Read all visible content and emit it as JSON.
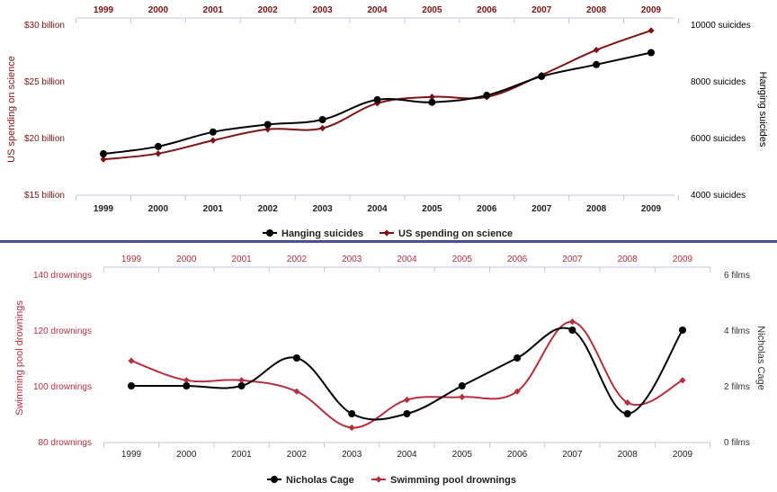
{
  "chart_data": [
    {
      "type": "line",
      "categories": [
        "1999",
        "2000",
        "2001",
        "2002",
        "2003",
        "2004",
        "2005",
        "2006",
        "2007",
        "2008",
        "2009"
      ],
      "series": [
        {
          "name": "Hanging suicides",
          "axis": "right",
          "color": "#000000",
          "marker": "circle",
          "values": [
            5427,
            5688,
            6198,
            6462,
            6635,
            7336,
            7248,
            7491,
            8161,
            8578,
            9000
          ]
        },
        {
          "name": "US spending on science",
          "axis": "left",
          "color": "#7a1416",
          "marker": "diamond",
          "values": [
            18.079,
            18.594,
            19.753,
            20.734,
            20.831,
            23.029,
            23.597,
            23.584,
            25.525,
            27.731,
            29.449
          ]
        }
      ],
      "left_axis": {
        "label": "US spending on science",
        "ticks": [
          "$15 billion",
          "$20 billion",
          "$25 billion",
          "$30 billion"
        ],
        "tick_values": [
          15,
          20,
          25,
          30
        ],
        "range": [
          15,
          30
        ],
        "color": "#7a1416"
      },
      "right_axis": {
        "label": "Hanging suicides",
        "ticks": [
          "4000 suicides",
          "6000 suicides",
          "8000 suicides",
          "10000 suicides"
        ],
        "tick_values": [
          4000,
          6000,
          8000,
          10000
        ],
        "range": [
          4000,
          10000
        ],
        "color": "#000000"
      },
      "top_tick_color": "#7a1416",
      "legend": "bottom-center",
      "grid": false
    },
    {
      "type": "line",
      "categories": [
        "1999",
        "2000",
        "2001",
        "2002",
        "2003",
        "2004",
        "2005",
        "2006",
        "2007",
        "2008",
        "2009"
      ],
      "series": [
        {
          "name": "Nicholas Cage",
          "axis": "right",
          "color": "#000000",
          "marker": "circle",
          "values": [
            2,
            2,
            2,
            3,
            1,
            1,
            2,
            3,
            4,
            1,
            4
          ]
        },
        {
          "name": "Swimming pool drownings",
          "axis": "left",
          "color": "#b2303f",
          "marker": "diamond",
          "values": [
            109,
            102,
            102,
            98,
            85,
            95,
            96,
            98,
            123,
            94,
            102
          ]
        }
      ],
      "left_axis": {
        "label": "Swimming pool drownings",
        "ticks": [
          "80 drownings",
          "100 drownings",
          "120 drownings",
          "140 drownings"
        ],
        "tick_values": [
          80,
          100,
          120,
          140
        ],
        "range": [
          80,
          140
        ],
        "color": "#b2303f"
      },
      "right_axis": {
        "label": "Nicholas Cage",
        "ticks": [
          "0 films",
          "2 films",
          "4 films",
          "6 films"
        ],
        "tick_values": [
          0,
          2,
          4,
          6
        ],
        "range": [
          0,
          6
        ],
        "color": "#333333"
      },
      "top_tick_color": "#b2303f",
      "legend": "bottom-center",
      "grid": false
    }
  ]
}
